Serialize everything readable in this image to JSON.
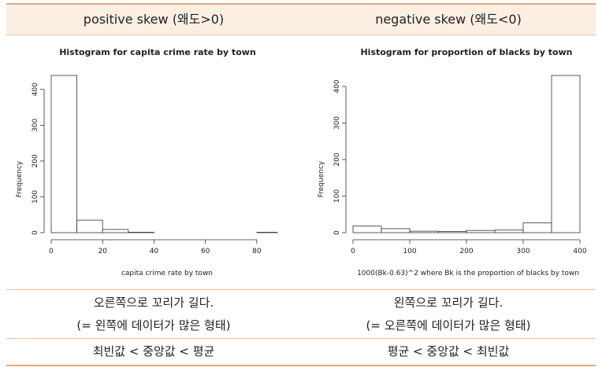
{
  "header": {
    "left": "positive skew (왜도>0)",
    "right": "negative skew (왜도<0)"
  },
  "chart_data": [
    {
      "type": "bar",
      "title": "Histogram for capita crime rate by town",
      "xlabel": "capita crime rate by town",
      "ylabel": "Frequency",
      "bins": [
        [
          0,
          10
        ],
        [
          10,
          20
        ],
        [
          20,
          30
        ],
        [
          30,
          40
        ],
        [
          40,
          50
        ],
        [
          50,
          60
        ],
        [
          60,
          70
        ],
        [
          70,
          80
        ],
        [
          80,
          90
        ]
      ],
      "values": [
        439,
        35,
        9,
        1,
        0,
        0,
        0,
        0,
        1
      ],
      "xlim": [
        0,
        88
      ],
      "ylim": [
        0,
        439
      ],
      "xticks": [
        0,
        20,
        40,
        60,
        80
      ],
      "yticks": [
        0,
        100,
        200,
        300,
        400
      ],
      "grid": false
    },
    {
      "type": "bar",
      "title": "Histogram for proportion of blacks by town",
      "xlabel": "1000(Bk-0.63)^2 where Bk is the proportion of blacks by town",
      "ylabel": "Frequency",
      "bins": [
        [
          0,
          50
        ],
        [
          50,
          100
        ],
        [
          100,
          150
        ],
        [
          150,
          200
        ],
        [
          200,
          250
        ],
        [
          250,
          300
        ],
        [
          300,
          350
        ],
        [
          350,
          400
        ]
      ],
      "values": [
        18,
        11,
        4,
        3,
        6,
        7,
        27,
        430
      ],
      "xlim": [
        0,
        400
      ],
      "ylim": [
        0,
        430
      ],
      "xticks": [
        0,
        100,
        200,
        300,
        400
      ],
      "yticks": [
        0,
        100,
        200,
        300,
        400
      ],
      "grid": false
    }
  ],
  "description": {
    "left_line1": "오른쪽으로 꼬리가 길다.",
    "left_line2": "(= 왼쪽에 데이터가 많은 형태)",
    "right_line1": "왼쪽으로 꼬리가 길다.",
    "right_line2": "(= 오른쪽에 데이터가 많은 형태)"
  },
  "summary": {
    "left": "최빈값 < 중앙값 < 평균",
    "right": "평균 < 중앙값 < 최빈값"
  }
}
